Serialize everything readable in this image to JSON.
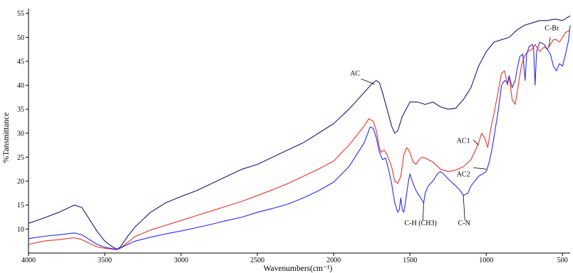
{
  "chart_data": {
    "type": "line",
    "xlabel": "Wavenumbers(cm⁻¹)",
    "ylabel": "%Tansmittance",
    "xlim": [
      4000,
      450
    ],
    "ylim": [
      5,
      56
    ],
    "x_reversed": true,
    "xticks": [
      4000,
      3500,
      3000,
      2500,
      2000,
      1500,
      1000,
      500
    ],
    "yticks": [
      10,
      15,
      20,
      25,
      30,
      35,
      40,
      45,
      50,
      55
    ],
    "grid": false,
    "series": [
      {
        "name": "AC",
        "color": "#1a1a7a",
        "points": [
          [
            4000,
            11.2
          ],
          [
            3900,
            12.3
          ],
          [
            3800,
            13.5
          ],
          [
            3700,
            15.0
          ],
          [
            3650,
            14.5
          ],
          [
            3600,
            12.0
          ],
          [
            3550,
            9.5
          ],
          [
            3500,
            7.5
          ],
          [
            3450,
            6.3
          ],
          [
            3420,
            5.8
          ],
          [
            3400,
            6.2
          ],
          [
            3350,
            8.5
          ],
          [
            3300,
            10.5
          ],
          [
            3200,
            13.5
          ],
          [
            3100,
            15.5
          ],
          [
            3000,
            16.8
          ],
          [
            2900,
            18.0
          ],
          [
            2800,
            19.5
          ],
          [
            2700,
            21.0
          ],
          [
            2600,
            22.5
          ],
          [
            2500,
            23.5
          ],
          [
            2400,
            25.0
          ],
          [
            2300,
            26.5
          ],
          [
            2200,
            28.0
          ],
          [
            2100,
            30.0
          ],
          [
            2000,
            32.0
          ],
          [
            1900,
            35.0
          ],
          [
            1800,
            38.5
          ],
          [
            1750,
            40.3
          ],
          [
            1720,
            41.0
          ],
          [
            1700,
            40.5
          ],
          [
            1680,
            38.5
          ],
          [
            1650,
            35.0
          ],
          [
            1620,
            31.5
          ],
          [
            1600,
            30.0
          ],
          [
            1580,
            30.5
          ],
          [
            1550,
            33.5
          ],
          [
            1500,
            36.5
          ],
          [
            1450,
            36.5
          ],
          [
            1400,
            36.0
          ],
          [
            1350,
            36.5
          ],
          [
            1300,
            35.5
          ],
          [
            1250,
            35.0
          ],
          [
            1200,
            35.2
          ],
          [
            1150,
            37.0
          ],
          [
            1100,
            39.5
          ],
          [
            1050,
            44.0
          ],
          [
            1000,
            47.0
          ],
          [
            950,
            49.0
          ],
          [
            900,
            49.5
          ],
          [
            850,
            50.0
          ],
          [
            800,
            51.5
          ],
          [
            750,
            52.5
          ],
          [
            700,
            53.0
          ],
          [
            650,
            53.5
          ],
          [
            600,
            53.5
          ],
          [
            550,
            53.8
          ],
          [
            500,
            53.5
          ],
          [
            450,
            54.5
          ]
        ]
      },
      {
        "name": "AC1",
        "color": "#e8332a",
        "points": [
          [
            4000,
            6.8
          ],
          [
            3900,
            7.5
          ],
          [
            3800,
            7.8
          ],
          [
            3700,
            8.2
          ],
          [
            3650,
            7.8
          ],
          [
            3600,
            7.0
          ],
          [
            3550,
            6.3
          ],
          [
            3500,
            6.0
          ],
          [
            3450,
            5.8
          ],
          [
            3420,
            5.7
          ],
          [
            3400,
            6.0
          ],
          [
            3350,
            7.2
          ],
          [
            3300,
            8.5
          ],
          [
            3200,
            9.8
          ],
          [
            3100,
            10.8
          ],
          [
            3000,
            11.8
          ],
          [
            2900,
            12.8
          ],
          [
            2800,
            13.8
          ],
          [
            2700,
            14.8
          ],
          [
            2600,
            15.8
          ],
          [
            2500,
            17.0
          ],
          [
            2400,
            18.2
          ],
          [
            2300,
            19.5
          ],
          [
            2200,
            21.0
          ],
          [
            2100,
            22.5
          ],
          [
            2000,
            24.2
          ],
          [
            1900,
            27.5
          ],
          [
            1800,
            31.5
          ],
          [
            1770,
            33.0
          ],
          [
            1740,
            32.5
          ],
          [
            1720,
            30.5
          ],
          [
            1700,
            27.0
          ],
          [
            1690,
            26.0
          ],
          [
            1670,
            26.5
          ],
          [
            1650,
            25.5
          ],
          [
            1620,
            23.0
          ],
          [
            1600,
            20.0
          ],
          [
            1580,
            19.5
          ],
          [
            1560,
            21.0
          ],
          [
            1540,
            25.5
          ],
          [
            1520,
            27.0
          ],
          [
            1500,
            26.0
          ],
          [
            1480,
            24.0
          ],
          [
            1460,
            23.5
          ],
          [
            1440,
            24.5
          ],
          [
            1420,
            25.0
          ],
          [
            1400,
            24.8
          ],
          [
            1350,
            24.0
          ],
          [
            1300,
            22.5
          ],
          [
            1250,
            22.0
          ],
          [
            1200,
            22.3
          ],
          [
            1150,
            23.0
          ],
          [
            1100,
            24.5
          ],
          [
            1070,
            26.5
          ],
          [
            1050,
            28.0
          ],
          [
            1030,
            30.0
          ],
          [
            1010,
            29.0
          ],
          [
            990,
            27.0
          ],
          [
            970,
            31.0
          ],
          [
            950,
            34.0
          ],
          [
            920,
            39.0
          ],
          [
            900,
            42.5
          ],
          [
            880,
            43.0
          ],
          [
            860,
            40.0
          ],
          [
            850,
            42.0
          ],
          [
            830,
            37.0
          ],
          [
            810,
            36.0
          ],
          [
            790,
            40.0
          ],
          [
            770,
            44.0
          ],
          [
            750,
            46.0
          ],
          [
            730,
            47.0
          ],
          [
            700,
            47.5
          ],
          [
            680,
            48.5
          ],
          [
            650,
            47.0
          ],
          [
            620,
            48.0
          ],
          [
            600,
            47.5
          ],
          [
            580,
            48.5
          ],
          [
            560,
            49.5
          ],
          [
            540,
            49.5
          ],
          [
            520,
            49.0
          ],
          [
            500,
            50.0
          ],
          [
            480,
            51.0
          ],
          [
            450,
            51.5
          ]
        ]
      },
      {
        "name": "AC2",
        "color": "#2b2bf0",
        "points": [
          [
            4000,
            8.0
          ],
          [
            3900,
            8.5
          ],
          [
            3800,
            8.8
          ],
          [
            3700,
            9.2
          ],
          [
            3650,
            8.8
          ],
          [
            3600,
            7.8
          ],
          [
            3550,
            6.8
          ],
          [
            3500,
            6.2
          ],
          [
            3450,
            5.9
          ],
          [
            3420,
            5.8
          ],
          [
            3400,
            6.0
          ],
          [
            3350,
            6.8
          ],
          [
            3300,
            7.5
          ],
          [
            3200,
            8.3
          ],
          [
            3100,
            9.0
          ],
          [
            3000,
            9.6
          ],
          [
            2900,
            10.3
          ],
          [
            2800,
            11.0
          ],
          [
            2700,
            11.8
          ],
          [
            2600,
            12.5
          ],
          [
            2500,
            13.5
          ],
          [
            2400,
            14.3
          ],
          [
            2300,
            15.2
          ],
          [
            2200,
            16.5
          ],
          [
            2100,
            18.0
          ],
          [
            2000,
            19.8
          ],
          [
            1900,
            23.0
          ],
          [
            1800,
            28.0
          ],
          [
            1760,
            31.3
          ],
          [
            1740,
            31.0
          ],
          [
            1720,
            29.0
          ],
          [
            1700,
            26.0
          ],
          [
            1680,
            24.5
          ],
          [
            1660,
            24.8
          ],
          [
            1640,
            22.5
          ],
          [
            1620,
            19.5
          ],
          [
            1600,
            15.5
          ],
          [
            1580,
            13.5
          ],
          [
            1570,
            14.0
          ],
          [
            1560,
            16.5
          ],
          [
            1550,
            14.0
          ],
          [
            1540,
            13.5
          ],
          [
            1530,
            15.5
          ],
          [
            1510,
            20.0
          ],
          [
            1500,
            21.5
          ],
          [
            1480,
            19.5
          ],
          [
            1460,
            18.0
          ],
          [
            1440,
            17.0
          ],
          [
            1420,
            16.0
          ],
          [
            1410,
            15.5
          ],
          [
            1400,
            17.5
          ],
          [
            1380,
            19.0
          ],
          [
            1350,
            20.0
          ],
          [
            1320,
            21.5
          ],
          [
            1300,
            22.0
          ],
          [
            1280,
            21.5
          ],
          [
            1250,
            20.5
          ],
          [
            1200,
            19.0
          ],
          [
            1170,
            18.0
          ],
          [
            1150,
            17.0
          ],
          [
            1120,
            17.5
          ],
          [
            1100,
            19.0
          ],
          [
            1050,
            21.0
          ],
          [
            1000,
            22.0
          ],
          [
            980,
            24.0
          ],
          [
            960,
            27.0
          ],
          [
            940,
            31.0
          ],
          [
            920,
            35.0
          ],
          [
            900,
            40.0
          ],
          [
            880,
            41.0
          ],
          [
            860,
            40.5
          ],
          [
            850,
            42.0
          ],
          [
            830,
            39.5
          ],
          [
            810,
            41.0
          ],
          [
            800,
            43.0
          ],
          [
            780,
            46.0
          ],
          [
            760,
            46.5
          ],
          [
            745,
            41.0
          ],
          [
            735,
            46.5
          ],
          [
            720,
            48.0
          ],
          [
            700,
            48.5
          ],
          [
            690,
            48.0
          ],
          [
            680,
            40.0
          ],
          [
            670,
            47.0
          ],
          [
            650,
            49.0
          ],
          [
            620,
            48.5
          ],
          [
            600,
            47.5
          ],
          [
            580,
            46.5
          ],
          [
            560,
            44.0
          ],
          [
            540,
            43.0
          ],
          [
            520,
            44.5
          ],
          [
            500,
            44.0
          ],
          [
            480,
            46.5
          ],
          [
            460,
            49.5
          ],
          [
            450,
            52.5
          ]
        ]
      }
    ],
    "annotations": [
      {
        "text": "AC",
        "at": [
          1860,
          42.0
        ]
      },
      {
        "text": "AC1",
        "at": [
          1150,
          28.0
        ]
      },
      {
        "text": "AC2",
        "at": [
          1150,
          21.0
        ]
      },
      {
        "text": "C-H (CH3)",
        "at": [
          1430,
          10.8
        ]
      },
      {
        "text": "C-N",
        "at": [
          1145,
          10.8
        ]
      },
      {
        "text": "C-Br",
        "at": [
          570,
          51.5
        ]
      }
    ]
  }
}
